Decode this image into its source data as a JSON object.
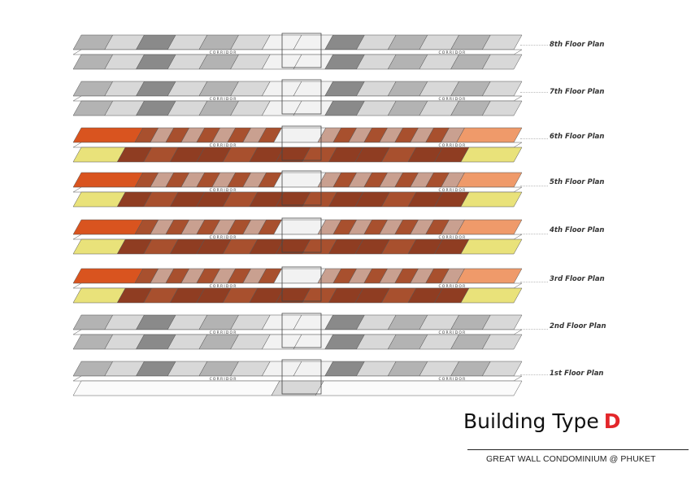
{
  "floors": [
    {
      "label": "8th Floor Plan",
      "style": "grey",
      "corridor": "CORRIDOR"
    },
    {
      "label": "7th Floor Plan",
      "style": "grey",
      "corridor": "CORRIDOR"
    },
    {
      "label": "6th Floor Plan",
      "style": "color",
      "corridor": "CORRIDOR"
    },
    {
      "label": "5th Floor Plan",
      "style": "color",
      "corridor": "CORRIDOR"
    },
    {
      "label": "4th Floor Plan",
      "style": "color",
      "corridor": "CORRIDOR"
    },
    {
      "label": "3rd Floor Plan",
      "style": "color",
      "corridor": "CORRIDOR"
    },
    {
      "label": "2nd Floor Plan",
      "style": "grey",
      "corridor": "CORRIDOR"
    },
    {
      "label": "1st Floor Plan",
      "style": "ground",
      "corridor": "CORRIDOR"
    }
  ],
  "title": {
    "text": "Building Type",
    "letter": "D"
  },
  "subtitle": "GREAT WALL CONDOMINIUM @ PHUKET",
  "colors": {
    "unit_orange": "#d9541f",
    "unit_light_orange": "#ef9a6a",
    "unit_tan": "#c9a090",
    "unit_brown": "#8f3d22",
    "unit_rust": "#a8502e",
    "unit_yellow": "#e9e27a",
    "grey_dark": "#8a8a8a",
    "grey_mid": "#b3b3b3",
    "grey_light": "#d8d8d8",
    "accent_red": "#e3262a"
  }
}
